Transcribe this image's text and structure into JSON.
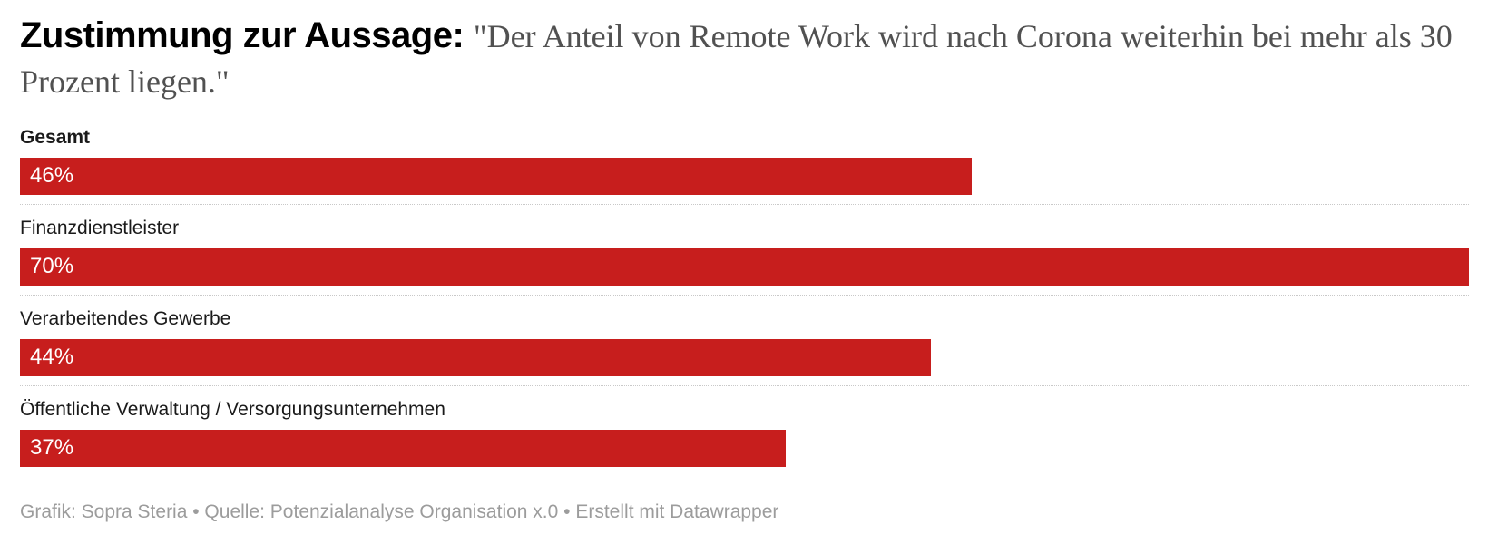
{
  "header": {
    "title_bold": "Zustimmung zur Aussage:",
    "title_quote": "\"Der Anteil von Remote Work wird nach Corona weiterhin bei mehr als 30 Prozent liegen.\""
  },
  "chart_data": {
    "type": "bar",
    "orientation": "horizontal",
    "title": "Zustimmung zur Aussage: \"Der Anteil von Remote Work wird nach Corona weiterhin bei mehr als 30 Prozent liegen.\"",
    "categories": [
      "Gesamt",
      "Finanzdienstleister",
      "Verarbeitendes Gewerbe",
      "Öffentliche Verwaltung / Versorgungsunternehmen"
    ],
    "values": [
      46,
      70,
      44,
      37
    ],
    "value_labels": [
      "46%",
      "70%",
      "44%",
      "37%"
    ],
    "xlim": [
      0,
      70
    ],
    "grid": false,
    "legend": false,
    "bar_color": "#c71e1d",
    "value_label_color": "#ffffff",
    "highlighted_category": "Gesamt",
    "separator_style": "dotted"
  },
  "footer": {
    "credit": "Grafik: Sopra Steria • Quelle: Potenzialanalyse Organisation x.0 • Erstellt mit Datawrapper"
  }
}
